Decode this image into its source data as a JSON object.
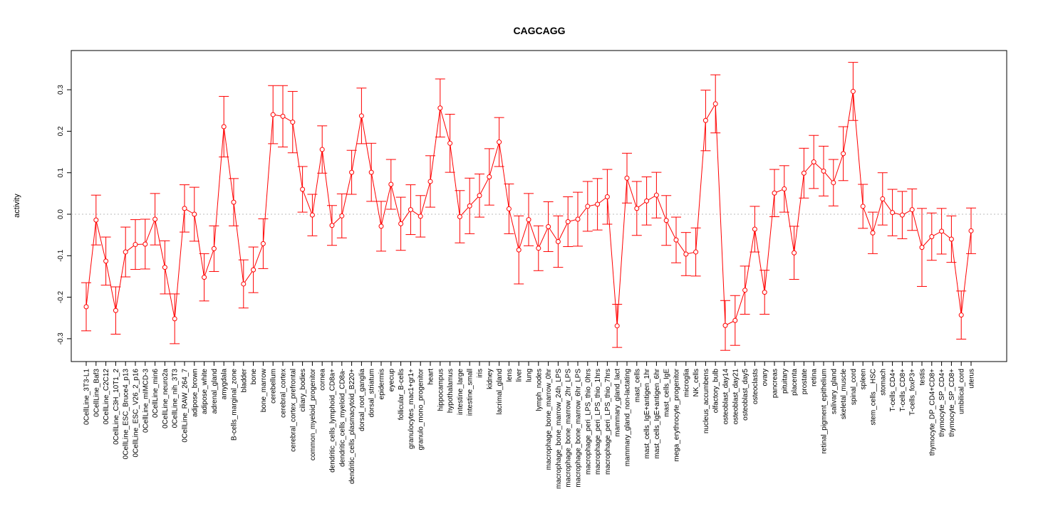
{
  "chart_data": {
    "type": "line",
    "title": "CAGCAGG",
    "xlabel": "",
    "ylabel": "activity",
    "ylim": [
      -0.35,
      0.4
    ],
    "yticks": [
      -0.3,
      -0.2,
      -0.1,
      0.0,
      0.1,
      0.2,
      0.3
    ],
    "ytick_labels": [
      "-0.3",
      "-0.2",
      "-0.1",
      "0.0",
      "0.1",
      "0.2",
      "0.3"
    ],
    "grid": "dotted line at 0",
    "series_color": "#ff0000",
    "categories": [
      "0CellLine_3T3-L1",
      "0CellLine_Baf3",
      "0CellLine_C2C12",
      "0CellLine_C3H_10T1_2",
      "0CellLine_ESC_Bruce4_p13",
      "0CellLine_ESC_V26_2_p16",
      "0CellLine_mIMCD-3",
      "0CellLine_min6",
      "0CellLine_neuro2a",
      "0CellLine_nih_3T3",
      "0CellLine_RAW_264_7",
      "adipose_brown",
      "adipose_white",
      "adrenal_gland",
      "amygdala",
      "B-cells_marginal_zone",
      "bladder",
      "bone",
      "bone_marrow",
      "cerebellum",
      "cerebral_cortex",
      "cerebral_cortex_prefrontal",
      "ciliary_bodies",
      "common_myeloid_progenitor",
      "cornea",
      "dendritic_cells_lymphoid_CD8a+",
      "dendritic_cells_myeloid_CD8a-",
      "dendritic_cells_plasmacytoid_B220+",
      "dorsal_root_ganglia",
      "dorsal_striatum",
      "epidermis",
      "eyecup",
      "follicular_B-cells",
      "granulocytes_mac1+gr1+",
      "granulo_mono_progenitor",
      "heart",
      "hippocampus",
      "hypothalamus",
      "intestine_large",
      "intestine_small",
      "iris",
      "kidney",
      "lacrimal_gland",
      "lens",
      "liver",
      "lung",
      "lymph_nodes",
      "macrophage_bone_marrow_0hr",
      "macrophage_bone_marrow_24h_LPS",
      "macrophage_bone_marrow_2hr_LPS",
      "macrophage_bone_marrow_6hr_LPS",
      "macrophage_peri_LPS_thio_0hrs",
      "macrophage_peri_LPS_thio_1hrs",
      "macrophage_peri_LPS_thio_7hrs",
      "mammary_gland_lact",
      "mammary_gland_non-lactating",
      "mast_cells",
      "mast_cells_IgE+antigen_1hr",
      "mast_cells_IgE+antigen_6hr",
      "mast_cells_IgE",
      "mega_erythrocyte_progenitor",
      "microglia",
      "NK_cells",
      "nucleus_accumbens",
      "olfactory_bulb",
      "osteoblast_day14",
      "osteoblast_day21",
      "osteoblast_day5",
      "osteoclasts",
      "ovary",
      "pancreas",
      "pituitary",
      "placenta",
      "prostate",
      "retina",
      "retinal_pigment_epithelium",
      "salivary_gland",
      "skeletal_muscle",
      "spinal_cord",
      "spleen",
      "stem_cells__HSC",
      "stomach",
      "T-cells_CD4+",
      "T-cells_CD8+",
      "T-cells_foxP3+",
      "testis",
      "thymocyte_DP_CD4+CD8+",
      "thymocyte_SP_CD4+",
      "thymocyte_SP_CD8+",
      "umbilical_cord",
      "uterus"
    ],
    "values": [
      -0.223,
      -0.014,
      -0.113,
      -0.232,
      -0.091,
      -0.073,
      -0.072,
      -0.012,
      -0.128,
      -0.252,
      0.014,
      0.0,
      -0.152,
      -0.083,
      0.211,
      0.029,
      -0.168,
      -0.134,
      -0.071,
      0.24,
      0.236,
      0.222,
      0.06,
      -0.002,
      0.156,
      -0.027,
      -0.004,
      0.101,
      0.237,
      0.101,
      -0.029,
      0.072,
      -0.023,
      0.011,
      -0.005,
      0.079,
      0.256,
      0.171,
      -0.006,
      0.02,
      0.045,
      0.09,
      0.174,
      0.013,
      -0.086,
      -0.013,
      -0.082,
      -0.03,
      -0.066,
      -0.018,
      -0.012,
      0.019,
      0.024,
      0.042,
      -0.269,
      0.087,
      0.014,
      0.032,
      0.046,
      -0.015,
      -0.062,
      -0.096,
      -0.091,
      0.226,
      0.266,
      -0.268,
      -0.256,
      -0.183,
      -0.036,
      -0.188,
      0.051,
      0.061,
      -0.093,
      0.099,
      0.126,
      0.104,
      0.076,
      0.146,
      0.296,
      0.019,
      -0.045,
      0.037,
      0.004,
      -0.002,
      0.011,
      -0.08,
      -0.054,
      -0.041,
      -0.06,
      -0.243,
      -0.04
    ],
    "errors": [
      0.058,
      0.06,
      0.058,
      0.057,
      0.06,
      0.06,
      0.06,
      0.062,
      0.064,
      0.06,
      0.057,
      0.065,
      0.057,
      0.055,
      0.073,
      0.057,
      0.058,
      0.055,
      0.06,
      0.07,
      0.074,
      0.074,
      0.055,
      0.05,
      0.057,
      0.048,
      0.053,
      0.053,
      0.067,
      0.07,
      0.06,
      0.06,
      0.064,
      0.06,
      0.05,
      0.062,
      0.07,
      0.07,
      0.063,
      0.067,
      0.052,
      0.068,
      0.059,
      0.06,
      0.082,
      0.063,
      0.054,
      0.06,
      0.062,
      0.06,
      0.065,
      0.06,
      0.062,
      0.066,
      0.052,
      0.06,
      0.065,
      0.058,
      0.055,
      0.06,
      0.055,
      0.052,
      0.058,
      0.073,
      0.07,
      0.06,
      0.06,
      0.058,
      0.055,
      0.053,
      0.057,
      0.056,
      0.064,
      0.06,
      0.064,
      0.06,
      0.056,
      0.065,
      0.07,
      0.053,
      0.05,
      0.063,
      0.056,
      0.057,
      0.05,
      0.094,
      0.057,
      0.055,
      0.056,
      0.058,
      0.055
    ]
  }
}
